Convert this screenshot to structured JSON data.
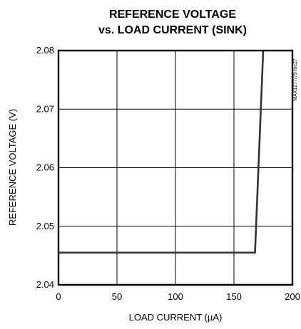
{
  "chart_data": {
    "type": "line",
    "title_lines": [
      "REFERENCE VOLTAGE",
      "vs. LOAD CURRENT (SINK)"
    ],
    "xlabel": "LOAD CURRENT (µA)",
    "ylabel": "REFERENCE VOLTAGE (V)",
    "xlim": [
      0,
      200
    ],
    "ylim": [
      2.04,
      2.08
    ],
    "x_ticks": [
      0,
      50,
      100,
      150,
      200
    ],
    "x_tick_labels": [
      "0",
      "50",
      "100",
      "150",
      "200"
    ],
    "y_ticks": [
      2.04,
      2.05,
      2.06,
      2.07,
      2.08
    ],
    "y_tick_labels": [
      "2.04",
      "2.05",
      "2.06",
      "2.07",
      "2.08"
    ],
    "grid": true,
    "series": [
      {
        "x": [
          0,
          168,
          175
        ],
        "y": [
          2.0455,
          2.0455,
          2.08
        ]
      }
    ],
    "colors": {
      "line": "#333333",
      "grid": "#000000",
      "frame": "#000000"
    },
    "watermark": "MAX1277/79 toc27"
  }
}
